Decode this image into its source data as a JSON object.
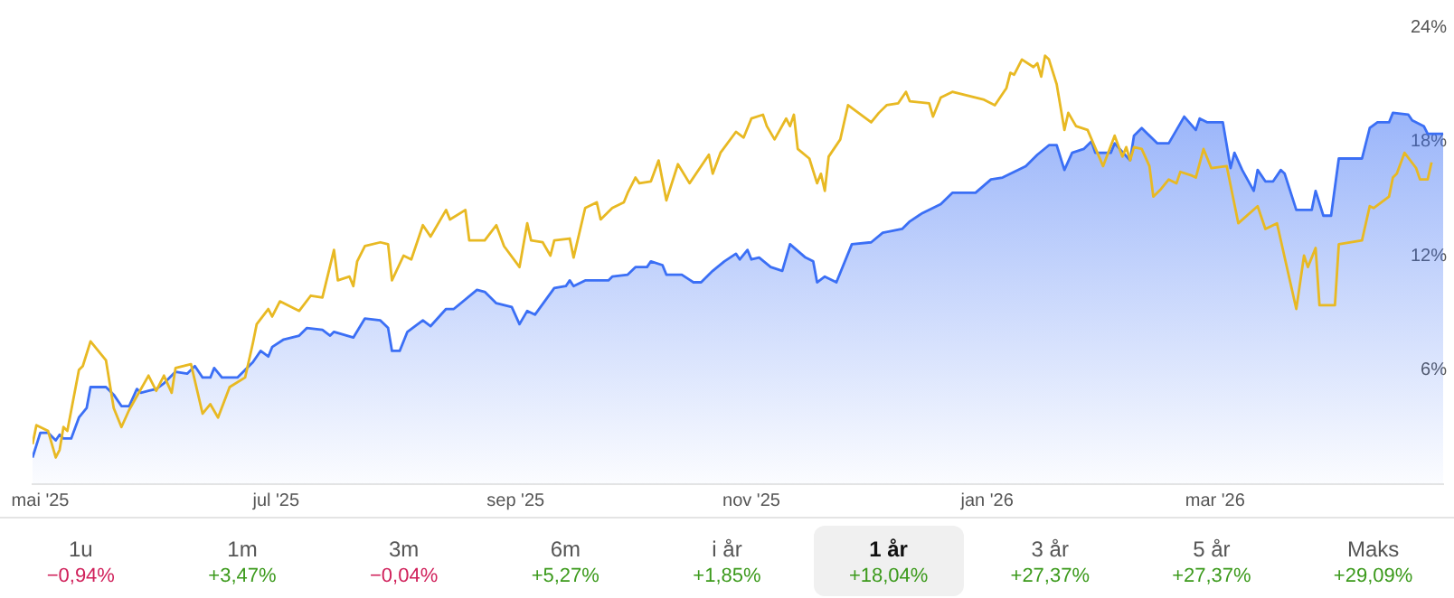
{
  "chart_data": [
    {
      "type": "area",
      "xlim": [
        "2025-04-29",
        "2026-04-29"
      ],
      "ylim": [
        0,
        24
      ],
      "xticks": [
        {
          "value": "2025-05-01",
          "label": "mai '25"
        },
        {
          "value": "2025-07-01",
          "label": "jul '25"
        },
        {
          "value": "2025-09-01",
          "label": "sep '25"
        },
        {
          "value": "2025-11-01",
          "label": "nov '25"
        },
        {
          "value": "2026-01-01",
          "label": "jan '26"
        },
        {
          "value": "2026-03-01",
          "label": "mar '26"
        }
      ],
      "yticks": [
        {
          "value": 6,
          "label": "6%"
        },
        {
          "value": 12,
          "label": "12%"
        },
        {
          "value": 18,
          "label": "18%"
        },
        {
          "value": 24,
          "label": "24%"
        }
      ],
      "grid": false,
      "legend": false,
      "marker": "none",
      "series": [
        {
          "type": "area",
          "color": "#3b6ff5",
          "x": [
            "2025-04-29",
            "2025-05-01",
            "2025-05-03",
            "2025-05-05",
            "2025-05-06",
            "2025-05-07",
            "2025-05-09",
            "2025-05-11",
            "2025-05-13",
            "2025-05-14",
            "2025-05-18",
            "2025-05-20",
            "2025-05-22",
            "2025-05-24",
            "2025-05-26",
            "2025-05-27",
            "2025-05-29",
            "2025-05-31",
            "2025-06-02",
            "2025-06-05",
            "2025-06-08",
            "2025-06-10",
            "2025-06-12",
            "2025-06-14",
            "2025-06-15",
            "2025-06-17",
            "2025-06-21",
            "2025-06-25",
            "2025-06-27",
            "2025-06-29",
            "2025-06-30",
            "2025-07-03",
            "2025-07-07",
            "2025-07-09",
            "2025-07-13",
            "2025-07-15",
            "2025-07-16",
            "2025-07-21",
            "2025-07-24",
            "2025-07-28",
            "2025-07-30",
            "2025-07-31",
            "2025-08-02",
            "2025-08-04",
            "2025-08-08",
            "2025-08-10",
            "2025-08-14",
            "2025-08-16",
            "2025-08-22",
            "2025-08-24",
            "2025-08-27",
            "2025-08-31",
            "2025-09-02",
            "2025-09-04",
            "2025-09-06",
            "2025-09-11",
            "2025-09-14",
            "2025-09-15",
            "2025-09-16",
            "2025-09-19",
            "2025-09-25",
            "2025-09-26",
            "2025-09-30",
            "2025-10-02",
            "2025-10-05",
            "2025-10-06",
            "2025-10-09",
            "2025-10-10",
            "2025-10-14",
            "2025-10-17",
            "2025-10-19",
            "2025-10-22",
            "2025-10-25",
            "2025-10-28",
            "2025-10-29",
            "2025-10-31",
            "2025-11-01",
            "2025-11-03",
            "2025-11-06",
            "2025-11-09",
            "2025-11-11",
            "2025-11-15",
            "2025-11-17",
            "2025-11-18",
            "2025-11-20",
            "2025-11-23",
            "2025-11-27",
            "2025-12-02",
            "2025-12-05",
            "2025-12-10",
            "2025-12-12",
            "2025-12-15",
            "2025-12-20",
            "2025-12-23",
            "2025-12-29",
            "2026-01-02",
            "2026-01-05",
            "2026-01-08",
            "2026-01-11",
            "2026-01-14",
            "2026-01-17",
            "2026-01-19",
            "2026-01-21",
            "2026-01-23",
            "2026-01-26",
            "2026-01-28",
            "2026-01-29",
            "2026-02-02",
            "2026-02-03",
            "2026-02-07",
            "2026-02-08",
            "2026-02-10",
            "2026-02-14",
            "2026-02-17",
            "2026-02-21",
            "2026-02-24",
            "2026-02-25",
            "2026-02-27",
            "2026-03-03",
            "2026-03-05",
            "2026-03-06",
            "2026-03-08",
            "2026-03-11",
            "2026-03-12",
            "2026-03-14",
            "2026-03-16",
            "2026-03-18",
            "2026-03-19",
            "2026-03-22",
            "2026-03-26",
            "2026-03-27",
            "2026-03-29",
            "2026-03-31",
            "2026-04-02",
            "2026-04-08",
            "2026-04-10",
            "2026-04-12",
            "2026-04-15",
            "2026-04-16",
            "2026-04-20",
            "2026-04-21",
            "2026-04-24",
            "2026-04-25",
            "2026-04-29"
          ],
          "values": [
            1.4,
            2.7,
            2.7,
            2.3,
            2.6,
            2.4,
            2.4,
            3.5,
            4.0,
            5.1,
            5.1,
            4.7,
            4.1,
            4.1,
            5.0,
            4.8,
            4.9,
            5.0,
            5.3,
            5.9,
            5.8,
            6.2,
            5.6,
            5.6,
            6.1,
            5.6,
            5.6,
            6.4,
            7.0,
            6.7,
            7.2,
            7.6,
            7.8,
            8.2,
            8.1,
            7.8,
            8.0,
            7.7,
            8.7,
            8.6,
            8.2,
            7.0,
            7.0,
            8.0,
            8.6,
            8.3,
            9.2,
            9.2,
            10.2,
            10.1,
            9.5,
            9.3,
            8.4,
            9.1,
            8.9,
            10.3,
            10.4,
            10.7,
            10.4,
            10.7,
            10.7,
            10.9,
            11.0,
            11.4,
            11.4,
            11.7,
            11.5,
            11.0,
            11.0,
            10.6,
            10.6,
            11.2,
            11.7,
            12.1,
            11.8,
            12.3,
            11.8,
            11.9,
            11.4,
            11.2,
            12.6,
            11.9,
            11.7,
            10.6,
            10.9,
            10.6,
            12.6,
            12.7,
            13.2,
            13.4,
            13.8,
            14.2,
            14.7,
            15.3,
            15.3,
            16.0,
            16.1,
            16.4,
            16.7,
            17.3,
            17.8,
            17.8,
            16.5,
            17.4,
            17.6,
            18.0,
            17.4,
            17.4,
            17.9,
            17.0,
            18.3,
            18.7,
            17.9,
            17.9,
            19.3,
            18.6,
            19.2,
            19.0,
            19.0,
            16.6,
            17.4,
            16.5,
            15.4,
            16.5,
            15.9,
            15.9,
            16.5,
            16.3,
            14.4,
            14.4,
            15.4,
            14.1,
            14.1,
            17.1,
            17.1,
            18.7,
            19.0,
            19.0,
            19.5,
            19.4,
            19.1,
            18.8,
            18.4,
            18.4
          ]
        },
        {
          "type": "line",
          "color": "#e8b923",
          "x": [
            "2025-04-29",
            "2025-04-30",
            "2025-05-03",
            "2025-05-05",
            "2025-05-06",
            "2025-05-07",
            "2025-05-08",
            "2025-05-11",
            "2025-05-12",
            "2025-05-14",
            "2025-05-18",
            "2025-05-20",
            "2025-05-22",
            "2025-05-24",
            "2025-05-29",
            "2025-05-31",
            "2025-06-02",
            "2025-06-04",
            "2025-06-05",
            "2025-06-09",
            "2025-06-12",
            "2025-06-14",
            "2025-06-16",
            "2025-06-19",
            "2025-06-23",
            "2025-06-25",
            "2025-06-26",
            "2025-06-29",
            "2025-06-30",
            "2025-07-02",
            "2025-07-07",
            "2025-07-10",
            "2025-07-13",
            "2025-07-16",
            "2025-07-17",
            "2025-07-20",
            "2025-07-21",
            "2025-07-22",
            "2025-07-24",
            "2025-07-28",
            "2025-07-30",
            "2025-07-31",
            "2025-08-03",
            "2025-08-05",
            "2025-08-08",
            "2025-08-10",
            "2025-08-14",
            "2025-08-15",
            "2025-08-19",
            "2025-08-20",
            "2025-08-24",
            "2025-08-27",
            "2025-08-29",
            "2025-09-02",
            "2025-09-04",
            "2025-09-05",
            "2025-09-08",
            "2025-09-10",
            "2025-09-11",
            "2025-09-15",
            "2025-09-16",
            "2025-09-19",
            "2025-09-22",
            "2025-09-23",
            "2025-09-26",
            "2025-09-29",
            "2025-09-30",
            "2025-10-02",
            "2025-10-03",
            "2025-10-06",
            "2025-10-08",
            "2025-10-10",
            "2025-10-13",
            "2025-10-16",
            "2025-10-21",
            "2025-10-22",
            "2025-10-24",
            "2025-10-28",
            "2025-10-30",
            "2025-11-01",
            "2025-11-04",
            "2025-11-05",
            "2025-11-07",
            "2025-11-10",
            "2025-11-11",
            "2025-11-12",
            "2025-11-13",
            "2025-11-16",
            "2025-11-18",
            "2025-11-19",
            "2025-11-20",
            "2025-11-21",
            "2025-11-24",
            "2025-11-26",
            "2025-12-02",
            "2025-12-04",
            "2025-12-06",
            "2025-12-09",
            "2025-12-11",
            "2025-12-12",
            "2025-12-17",
            "2025-12-18",
            "2025-12-20",
            "2025-12-23",
            "2025-12-31",
            "2026-01-03",
            "2026-01-06",
            "2026-01-07",
            "2026-01-08",
            "2026-01-10",
            "2026-01-13",
            "2026-01-14",
            "2026-01-15",
            "2026-01-16",
            "2026-01-17",
            "2026-01-19",
            "2026-01-21",
            "2026-01-22",
            "2026-01-24",
            "2026-01-27",
            "2026-01-31",
            "2026-02-03",
            "2026-02-05",
            "2026-02-06",
            "2026-02-07",
            "2026-02-08",
            "2026-02-10",
            "2026-02-12",
            "2026-02-13",
            "2026-02-15",
            "2026-02-17",
            "2026-02-19",
            "2026-02-20",
            "2026-02-23",
            "2026-02-24",
            "2026-02-26",
            "2026-02-28",
            "2026-03-04",
            "2026-03-07",
            "2026-03-12",
            "2026-03-14",
            "2026-03-17",
            "2026-03-22",
            "2026-03-24",
            "2026-03-25",
            "2026-03-27",
            "2026-03-28",
            "2026-04-01",
            "2026-04-02",
            "2026-04-08",
            "2026-04-10",
            "2026-04-11",
            "2026-04-15",
            "2026-04-16",
            "2026-04-17",
            "2026-04-19",
            "2026-04-22",
            "2026-04-23",
            "2026-04-25",
            "2026-04-26"
          ],
          "values": [
            2.1,
            3.1,
            2.8,
            1.4,
            1.8,
            3.0,
            2.8,
            6.0,
            6.2,
            7.5,
            6.5,
            4.0,
            3.0,
            3.9,
            5.7,
            4.9,
            5.7,
            4.8,
            6.1,
            6.3,
            3.7,
            4.2,
            3.5,
            5.1,
            5.6,
            7.4,
            8.4,
            9.2,
            8.8,
            9.6,
            9.1,
            9.9,
            9.8,
            12.3,
            10.7,
            10.9,
            10.4,
            11.7,
            12.5,
            12.7,
            12.6,
            10.7,
            12.0,
            11.8,
            13.6,
            13.0,
            14.4,
            13.9,
            14.4,
            12.8,
            12.8,
            13.6,
            12.5,
            11.4,
            13.7,
            12.8,
            12.7,
            12.0,
            12.8,
            12.9,
            11.9,
            14.5,
            14.8,
            13.9,
            14.5,
            14.8,
            15.3,
            16.1,
            15.8,
            15.9,
            17.0,
            14.9,
            16.8,
            15.8,
            17.3,
            16.3,
            17.4,
            18.5,
            18.2,
            19.2,
            19.4,
            18.8,
            18.1,
            19.2,
            18.8,
            19.4,
            17.6,
            17.1,
            15.8,
            16.3,
            15.4,
            17.2,
            18.1,
            19.9,
            19.0,
            19.5,
            19.9,
            20.0,
            20.6,
            20.1,
            20.0,
            19.3,
            20.3,
            20.6,
            20.2,
            19.9,
            20.8,
            21.6,
            21.5,
            22.3,
            21.9,
            22.1,
            21.4,
            22.5,
            22.3,
            21.0,
            18.6,
            19.5,
            18.8,
            18.6,
            16.7,
            18.3,
            17.2,
            17.7,
            17.0,
            17.7,
            17.6,
            16.7,
            15.1,
            15.5,
            16.0,
            15.8,
            16.4,
            16.2,
            16.1,
            17.6,
            16.6,
            16.7,
            13.7,
            14.6,
            13.4,
            13.7,
            9.2,
            12.0,
            11.4,
            12.4,
            9.4,
            9.4,
            12.6,
            12.8,
            14.6,
            14.5,
            15.1,
            16.1,
            16.3,
            17.4,
            16.6,
            16.0,
            16.0,
            16.9
          ]
        }
      ]
    },
    {
      "type": "other",
      "categories": [
        "1u",
        "1m",
        "3m",
        "6m",
        "i år",
        "1 år",
        "3 år",
        "5 år",
        "Maks"
      ],
      "values": [
        -0.94,
        3.47,
        -0.04,
        5.27,
        1.85,
        18.04,
        27.37,
        27.37,
        29.09
      ],
      "value_labels": [
        "−0,94%",
        "+3,47%",
        "−0,04%",
        "+5,27%",
        "+1,85%",
        "+18,04%",
        "+27,37%",
        "+27,37%",
        "+29,09%"
      ]
    }
  ]
}
